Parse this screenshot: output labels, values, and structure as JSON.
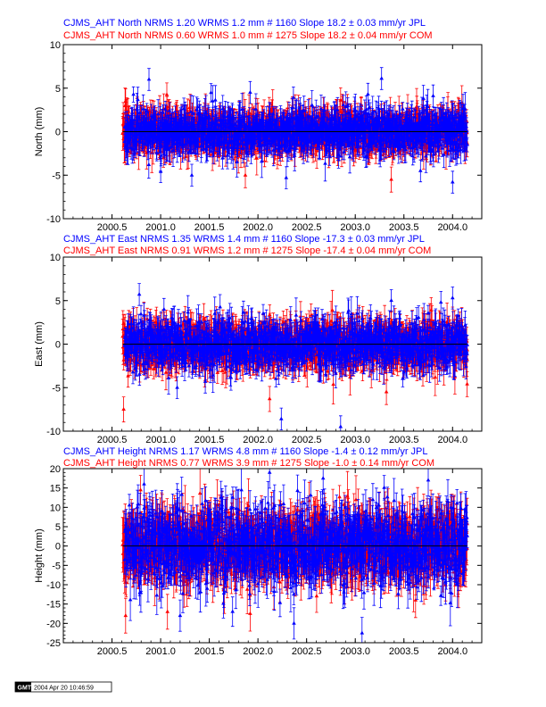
{
  "colors": {
    "jpl": "#0000ff",
    "com": "#ff0000",
    "axis": "#000000",
    "zero_line": "#000000"
  },
  "chart_data": [
    {
      "type": "scatter",
      "component": "North",
      "title_lines": [
        {
          "series": "JPL",
          "text": "CJMS_AHT North NRMS 1.20 WRMS  1.2 mm # 1160 Slope   18.2 ±  0.03 mm/yr JPL"
        },
        {
          "series": "COM",
          "text": "CJMS_AHT North NRMS 0.60 WRMS  1.0 mm # 1275 Slope   18.2 ±  0.04 mm/yr COM"
        }
      ],
      "ylabel": "North (mm)",
      "xlim": [
        2000.0,
        2004.3
      ],
      "ylim": [
        -10,
        10
      ],
      "xticks": [
        "2000.5",
        "2001.0",
        "2001.5",
        "2002.0",
        "2002.5",
        "2003.0",
        "2003.5",
        "2004.0"
      ],
      "yticks": [
        "-10",
        "-5",
        "0",
        "5",
        "10"
      ],
      "series": [
        {
          "name": "JPL",
          "count": 1160,
          "nrms": 1.2,
          "wrms_mm": 1.2,
          "slope_mm_yr": 18.2,
          "slope_sigma": 0.03,
          "x_range": [
            2000.63,
            2004.15
          ],
          "scatter_mm": 1.2,
          "sigma_mm": 1.4,
          "seed": 11,
          "outliers": [
            [
              2000.88,
              6.0
            ],
            [
              2001.92,
              4.5
            ],
            [
              2003.27,
              6.1
            ],
            [
              2003.13,
              4.3
            ],
            [
              2003.8,
              4.1
            ],
            [
              2001.32,
              -5.0
            ],
            [
              2002.29,
              -5.3
            ],
            [
              2004.0,
              -5.8
            ],
            [
              2001.0,
              -4.6
            ],
            [
              2003.67,
              -4.5
            ]
          ]
        },
        {
          "name": "COM",
          "count": 1275,
          "nrms": 0.6,
          "wrms_mm": 1.0,
          "slope_mm_yr": 18.2,
          "slope_sigma": 0.04,
          "x_range": [
            2000.61,
            2004.15
          ],
          "scatter_mm": 1.0,
          "sigma_mm": 1.6,
          "seed": 29,
          "outliers": [
            [
              2000.64,
              3.5
            ],
            [
              2001.87,
              -5.0
            ],
            [
              2003.37,
              -5.5
            ],
            [
              2002.85,
              3.6
            ]
          ]
        }
      ]
    },
    {
      "type": "scatter",
      "component": "East",
      "title_lines": [
        {
          "series": "JPL",
          "text": "CJMS_AHT East NRMS 1.35 WRMS  1.4 mm # 1160 Slope  -17.3 ±  0.03 mm/yr JPL"
        },
        {
          "series": "COM",
          "text": "CJMS_AHT East NRMS 0.91 WRMS  1.2 mm # 1275 Slope  -17.4 ±  0.04 mm/yr COM"
        }
      ],
      "ylabel": "East (mm)",
      "xlim": [
        2000.0,
        2004.3
      ],
      "ylim": [
        -10,
        10
      ],
      "xticks": [
        "2000.5",
        "2001.0",
        "2001.5",
        "2002.0",
        "2002.5",
        "2003.0",
        "2003.5",
        "2004.0"
      ],
      "yticks": [
        "-10",
        "-5",
        "0",
        "5",
        "10"
      ],
      "series": [
        {
          "name": "JPL",
          "count": 1160,
          "nrms": 1.35,
          "wrms_mm": 1.4,
          "slope_mm_yr": -17.3,
          "slope_sigma": 0.03,
          "x_range": [
            2000.63,
            2004.15
          ],
          "scatter_mm": 1.4,
          "sigma_mm": 1.4,
          "seed": 43,
          "outliers": [
            [
              2000.78,
              5.7
            ],
            [
              2002.24,
              -8.6
            ],
            [
              2002.85,
              -9.5
            ],
            [
              2003.37,
              5.0
            ],
            [
              2003.88,
              4.8
            ],
            [
              2001.17,
              -5.0
            ],
            [
              2004.0,
              5.3
            ]
          ]
        },
        {
          "name": "COM",
          "count": 1275,
          "nrms": 0.91,
          "wrms_mm": 1.2,
          "slope_mm_yr": -17.4,
          "slope_sigma": 0.04,
          "x_range": [
            2000.61,
            2004.15
          ],
          "scatter_mm": 1.2,
          "sigma_mm": 1.6,
          "seed": 57,
          "outliers": [
            [
              2000.62,
              -7.5
            ],
            [
              2002.12,
              -6.3
            ],
            [
              2003.32,
              -5.5
            ],
            [
              2003.78,
              3.9
            ],
            [
              2004.15,
              -4.6
            ]
          ]
        }
      ]
    },
    {
      "type": "scatter",
      "component": "Height",
      "title_lines": [
        {
          "series": "JPL",
          "text": "CJMS_AHT Height NRMS 1.17 WRMS  4.8 mm # 1160 Slope   -1.4 ±  0.12 mm/yr JPL"
        },
        {
          "series": "COM",
          "text": "CJMS_AHT Height NRMS 0.77 WRMS  3.9 mm # 1275 Slope   -1.0 ±  0.14 mm/yr COM"
        }
      ],
      "ylabel": "Height (mm)",
      "xlim": [
        2000.0,
        2004.3
      ],
      "ylim": [
        -25,
        20
      ],
      "xticks": [
        "2000.5",
        "2001.0",
        "2001.5",
        "2002.0",
        "2002.5",
        "2003.0",
        "2003.5",
        "2004.0"
      ],
      "yticks": [
        "-25",
        "-20",
        "-15",
        "-10",
        "-5",
        "0",
        "5",
        "10",
        "15",
        "20"
      ],
      "series": [
        {
          "name": "JPL",
          "count": 1160,
          "nrms": 1.17,
          "wrms_mm": 4.8,
          "slope_mm_yr": -1.4,
          "slope_sigma": 0.12,
          "x_range": [
            2000.63,
            2004.15
          ],
          "scatter_mm": 4.8,
          "sigma_mm": 4.5,
          "seed": 71,
          "outliers": [
            [
              2002.12,
              19.0
            ],
            [
              2002.67,
              17.5
            ],
            [
              2003.75,
              17.0
            ],
            [
              2000.83,
              16.0
            ],
            [
              2003.07,
              -22.5
            ],
            [
              2002.37,
              -20.0
            ],
            [
              2001.2,
              -18.0
            ]
          ]
        },
        {
          "name": "COM",
          "count": 1275,
          "nrms": 0.77,
          "wrms_mm": 3.9,
          "slope_mm_yr": -1.0,
          "slope_sigma": 0.14,
          "x_range": [
            2000.61,
            2004.15
          ],
          "scatter_mm": 3.9,
          "sigma_mm": 5.0,
          "seed": 89,
          "outliers": [
            [
              2001.07,
              -17.0
            ],
            [
              2001.92,
              -17.5
            ],
            [
              2003.62,
              -14.0
            ],
            [
              2000.64,
              -18.0
            ]
          ]
        }
      ]
    }
  ],
  "footer": {
    "logo": "GMT",
    "timestamp": "2004 Apr 20 10:46:59"
  }
}
